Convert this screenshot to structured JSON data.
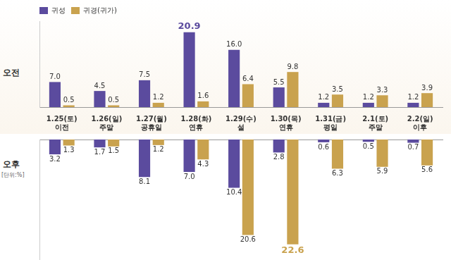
{
  "chart_data": [
    {
      "type": "bar",
      "y_label": "오전",
      "categories": [
        "1.25(토) 이전",
        "1.26(일) 주말",
        "1.27(월) 공휴일",
        "1.28(화) 연휴",
        "1.29(수) 설",
        "1.30(목) 연휴",
        "1.31(금) 평일",
        "2.1(토) 주말",
        "2.2(일) 이후"
      ],
      "series": [
        {
          "name": "귀성",
          "color": "#5b4b9e",
          "values": [
            7.0,
            4.5,
            7.5,
            20.9,
            16.0,
            5.5,
            1.2,
            1.2,
            1.2
          ],
          "value_labels": [
            "7.0",
            "4.5",
            "7.5",
            "20.9",
            "16.0",
            "5.5",
            "1.2",
            "1.2",
            "1.2"
          ]
        },
        {
          "name": "귀경(귀가)",
          "color": "#c9a24e",
          "values": [
            0.5,
            0.5,
            1.2,
            1.6,
            6.4,
            9.8,
            3.5,
            3.3,
            3.9
          ],
          "value_labels": [
            "0.5",
            "0.5",
            "1.2",
            "1.6",
            "6.4",
            "9.8",
            "3.5",
            "3.3",
            "3.9"
          ]
        }
      ],
      "ylim": [
        0,
        24
      ],
      "grid": false,
      "data_labels": true,
      "tick_labels": "x",
      "legend": "upper left"
    },
    {
      "type": "bar",
      "y_label": "오후",
      "annotation": "[단위:%]",
      "categories": [
        null,
        null,
        null,
        null,
        null,
        null,
        null,
        null,
        null
      ],
      "series": [
        {
          "color": "#5b4b9e",
          "values": [
            3.2,
            1.7,
            8.1,
            7.0,
            10.4,
            2.8,
            0.6,
            0.5,
            0.7
          ],
          "value_labels": [
            "3.2",
            "1.7",
            "8.1",
            "7.0",
            "10.4",
            "2.8",
            "0.6",
            "0.5",
            "0.7"
          ]
        },
        {
          "color": "#c9a24e",
          "values": [
            1.3,
            1.5,
            1.2,
            4.3,
            20.6,
            22.6,
            6.3,
            5.9,
            5.6
          ],
          "value_labels": [
            "1.3",
            "1.5",
            "1.2",
            "4.3",
            "20.6",
            "22.6",
            "6.3",
            "5.9",
            "5.6"
          ]
        }
      ],
      "ylim": [
        0,
        26
      ],
      "grid": false,
      "data_labels": true,
      "tick_labels": false
    }
  ]
}
